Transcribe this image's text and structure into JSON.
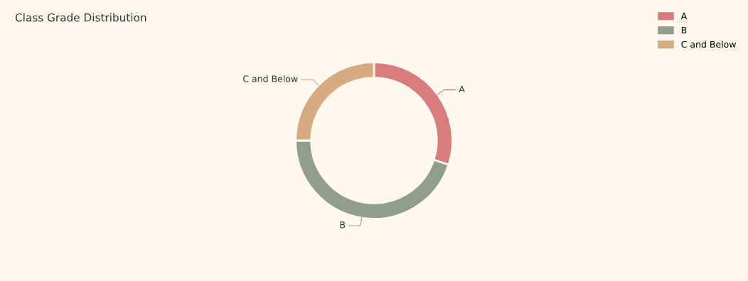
{
  "chart_data": {
    "type": "donut",
    "title": "Class Grade Distribution",
    "categories": [
      "A",
      "B",
      "C and Below"
    ],
    "values": [
      30,
      45,
      25
    ],
    "colors": [
      "#d87c7c",
      "#919e8b",
      "#d7ab82"
    ],
    "legend": "top right"
  }
}
